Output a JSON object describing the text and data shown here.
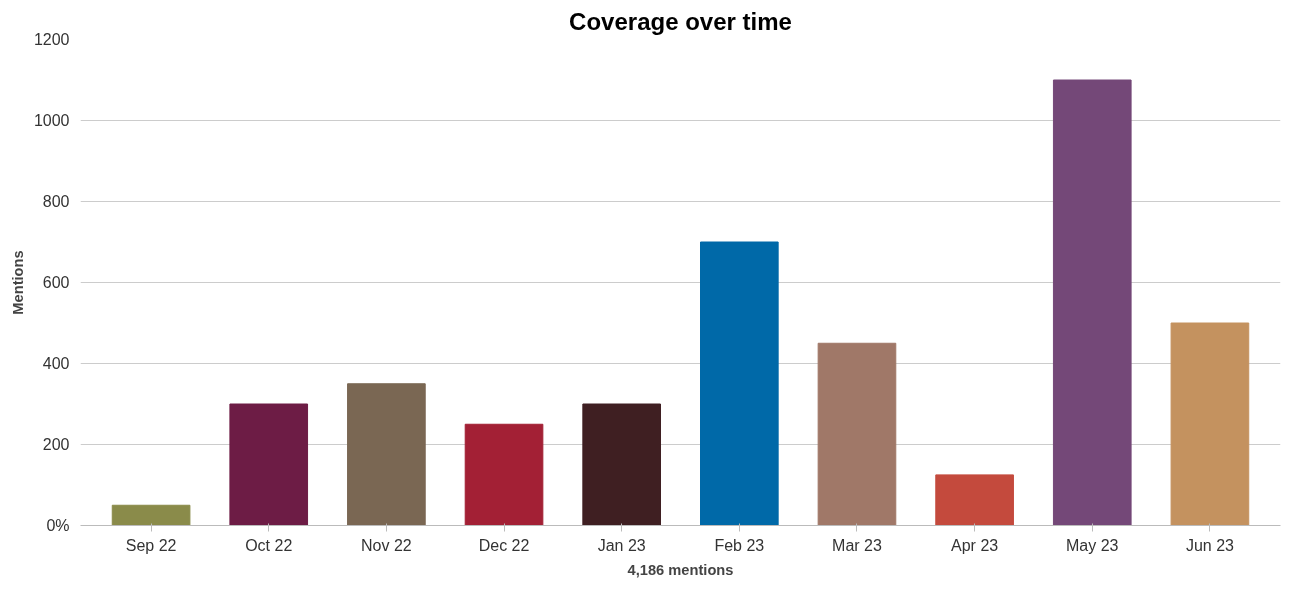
{
  "chart_data": {
    "type": "bar",
    "title": "Coverage over time",
    "xlabel": "4,186 mentions",
    "ylabel": "Mentions",
    "categories": [
      "Sep 22",
      "Oct 22",
      "Nov 22",
      "Dec 22",
      "Jan 23",
      "Feb 23",
      "Mar 23",
      "Apr 23",
      "May 23",
      "Jun 23"
    ],
    "values": [
      50,
      300,
      350,
      250,
      300,
      700,
      450,
      125,
      1100,
      500
    ],
    "colors": [
      "#8a8b4a",
      "#6d1c45",
      "#7a6753",
      "#a32035",
      "#3f1f22",
      "#0069a8",
      "#a07868",
      "#c44a3d",
      "#744878",
      "#c4925f"
    ],
    "ylim": [
      0,
      1200
    ],
    "yticks": [
      {
        "value": 0,
        "label": "0%"
      },
      200,
      400,
      600,
      800,
      1000,
      1200
    ],
    "grid": "y"
  }
}
